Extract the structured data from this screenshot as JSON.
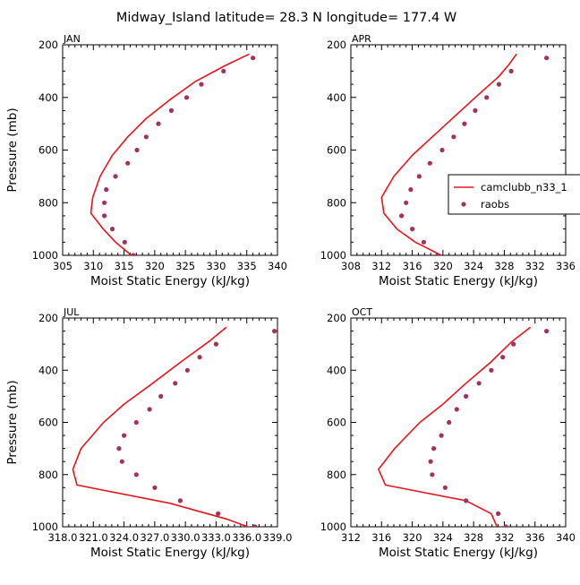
{
  "page": {
    "title": "Midway_Island  latitude= 28.3 N longitude= 177.4 W"
  },
  "colors": {
    "model": "#e8141e",
    "obs": "#a3305e",
    "axis": "#000000"
  },
  "legend": {
    "model_label": "camclubb_n33_1",
    "obs_label": "raobs"
  },
  "chart_data": [
    {
      "type": "line",
      "panel": "JAN",
      "title": "JAN",
      "xlabel": "Moist Static Energy (kJ/kg)",
      "ylabel": "Pressure (mb)",
      "xlim": [
        305,
        340
      ],
      "ylim": [
        1000,
        200
      ],
      "xticks": [
        305,
        310,
        315,
        320,
        325,
        330,
        335,
        340
      ],
      "xtick_labels": [
        "305",
        "310",
        "315",
        "320",
        "325",
        "330",
        "335",
        "340"
      ],
      "yticks": [
        200,
        400,
        600,
        800,
        1000
      ],
      "ytick_labels": [
        "200",
        "400",
        "600",
        "800",
        "1000"
      ],
      "series": [
        {
          "name": "camclubb_n33_1",
          "style": "line",
          "x": [
            316.2,
            313.6,
            311.6,
            309.6,
            309.9,
            311.1,
            313.1,
            315.6,
            318.6,
            322.4,
            326.6,
            331.4,
            335.4
          ],
          "y": [
            1000,
            950,
            900,
            840,
            780,
            700,
            620,
            550,
            480,
            410,
            340,
            280,
            235
          ]
        },
        {
          "name": "raobs",
          "style": "points",
          "x": [
            316.5,
            315.1,
            313.1,
            311.8,
            311.8,
            312.1,
            313.6,
            315.6,
            317.1,
            318.6,
            320.6,
            322.7,
            325.2,
            327.6,
            331.2,
            336.0
          ],
          "y": [
            1000,
            950,
            900,
            850,
            800,
            750,
            700,
            650,
            600,
            550,
            500,
            450,
            400,
            350,
            300,
            250
          ]
        }
      ]
    },
    {
      "type": "line",
      "panel": "APR",
      "title": "APR",
      "xlabel": "Moist Static Energy (kJ/kg)",
      "ylabel": "",
      "xlim": [
        308,
        336
      ],
      "ylim": [
        1000,
        200
      ],
      "xticks": [
        308,
        312,
        316,
        320,
        324,
        328,
        332,
        336
      ],
      "xtick_labels": [
        "308",
        "312",
        "316",
        "320",
        "324",
        "328",
        "332",
        "336"
      ],
      "yticks": [
        200,
        400,
        600,
        800,
        1000
      ],
      "ytick_labels": [
        "200",
        "400",
        "600",
        "800",
        "1000"
      ],
      "legend_position": "right",
      "series": [
        {
          "name": "camclubb_n33_1",
          "style": "line",
          "x": [
            319.8,
            316.4,
            314.0,
            312.3,
            312.0,
            313.6,
            316.0,
            318.6,
            321.6,
            324.6,
            327.3,
            328.6,
            329.6
          ],
          "y": [
            1000,
            950,
            900,
            840,
            780,
            700,
            620,
            550,
            470,
            390,
            320,
            275,
            235
          ]
        },
        {
          "name": "raobs",
          "style": "points",
          "x": [
            319.3,
            317.5,
            316.0,
            314.6,
            315.2,
            315.8,
            316.9,
            318.3,
            319.9,
            321.4,
            322.8,
            324.2,
            325.7,
            327.3,
            328.9,
            333.5
          ],
          "y": [
            1000,
            950,
            900,
            850,
            800,
            750,
            700,
            650,
            600,
            550,
            500,
            450,
            400,
            350,
            300,
            250
          ]
        }
      ]
    },
    {
      "type": "line",
      "panel": "JUL",
      "title": "JUL",
      "xlabel": "Moist Static Energy (kJ/kg)",
      "ylabel": "Pressure (mb)",
      "xlim": [
        318.0,
        339.0
      ],
      "ylim": [
        1000,
        200
      ],
      "xticks": [
        318.0,
        321.0,
        324.0,
        327.0,
        330.0,
        333.0,
        336.0,
        339.0
      ],
      "xtick_labels": [
        "318.0",
        "321.0",
        "324.0",
        "327.0",
        "330.0",
        "333.0",
        "336.0",
        "339.0"
      ],
      "yticks": [
        200,
        400,
        600,
        800,
        1000
      ],
      "ytick_labels": [
        "200",
        "400",
        "600",
        "800",
        "1000"
      ],
      "series": [
        {
          "name": "camclubb_n33_1",
          "style": "line",
          "x": [
            337.5,
            334.0,
            328.5,
            319.4,
            319.0,
            319.8,
            322.0,
            324.0,
            326.8,
            329.5,
            332.3,
            334.0
          ],
          "y": [
            1020,
            970,
            910,
            840,
            780,
            700,
            600,
            530,
            450,
            370,
            290,
            235
          ]
        },
        {
          "name": "raobs",
          "style": "points",
          "x": [
            336.8,
            333.2,
            329.5,
            327.0,
            325.2,
            323.8,
            323.5,
            324.0,
            325.2,
            326.5,
            327.6,
            329.0,
            330.2,
            331.4,
            333.0,
            338.7
          ],
          "y": [
            1000,
            950,
            900,
            850,
            800,
            750,
            700,
            650,
            600,
            550,
            500,
            450,
            400,
            350,
            300,
            250
          ]
        }
      ]
    },
    {
      "type": "line",
      "panel": "OCT",
      "title": "OCT",
      "xlabel": "Moist Static Energy (kJ/kg)",
      "ylabel": "",
      "xlim": [
        312,
        340
      ],
      "ylim": [
        1000,
        200
      ],
      "xticks": [
        312,
        316,
        320,
        324,
        328,
        332,
        336,
        340
      ],
      "xtick_labels": [
        "312",
        "316",
        "320",
        "324",
        "328",
        "332",
        "336",
        "340"
      ],
      "yticks": [
        200,
        400,
        600,
        800,
        1000
      ],
      "ytick_labels": [
        "200",
        "400",
        "600",
        "800",
        "1000"
      ],
      "series": [
        {
          "name": "camclubb_n33_1",
          "style": "line",
          "x": [
            331.2,
            330.3,
            327.0,
            316.5,
            315.6,
            317.7,
            321.0,
            324.0,
            327.0,
            330.2,
            333.0,
            335.4
          ],
          "y": [
            1010,
            950,
            900,
            840,
            780,
            700,
            600,
            530,
            450,
            370,
            290,
            235
          ]
        },
        {
          "name": "raobs",
          "style": "points",
          "x": [
            332.2,
            331.2,
            327.0,
            324.3,
            322.6,
            322.4,
            322.8,
            323.8,
            324.8,
            325.8,
            327.0,
            328.7,
            330.3,
            331.8,
            333.2,
            337.5
          ],
          "y": [
            1000,
            950,
            900,
            850,
            800,
            750,
            700,
            650,
            600,
            550,
            500,
            450,
            400,
            350,
            300,
            250
          ]
        }
      ]
    }
  ]
}
